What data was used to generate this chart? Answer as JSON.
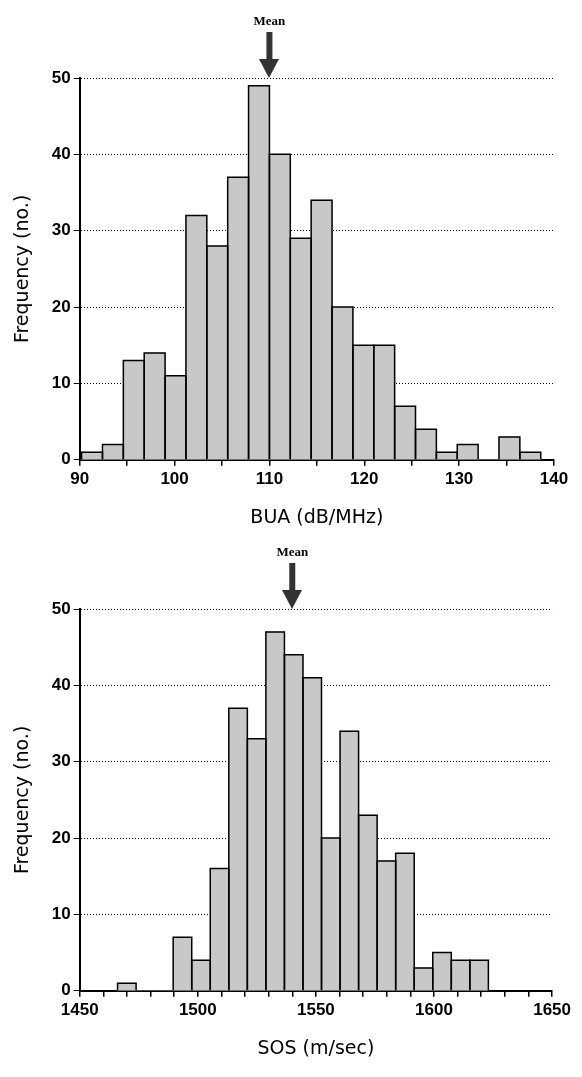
{
  "chart_data": [
    {
      "type": "histogram",
      "xlabel": "BUA (dB/MHz)",
      "ylabel": "Frequency (no.)",
      "bins": [
        90.2,
        92.4,
        94.6,
        96.8,
        99,
        101.2,
        103.4,
        105.6,
        107.8,
        110,
        112.2,
        114.4,
        116.6,
        118.8,
        121,
        123.2,
        125.4,
        127.6,
        129.8,
        132,
        134.2,
        136.4,
        138.6
      ],
      "values": [
        1,
        2,
        13,
        14,
        11,
        32,
        28,
        37,
        49,
        40,
        29,
        34,
        20,
        15,
        15,
        7,
        4,
        1,
        2,
        0,
        3,
        1
      ],
      "color": "#c8c8c8",
      "xlim": [
        90,
        140
      ],
      "xticks": [
        90,
        {
          "value": 95,
          "label": null
        },
        100,
        {
          "value": 105,
          "label": null
        },
        110,
        {
          "value": 115,
          "label": null
        },
        120,
        {
          "value": 125,
          "label": null
        },
        130,
        {
          "value": 135,
          "label": null
        },
        140
      ],
      "ylim": [
        0,
        50
      ],
      "yticks": [
        0,
        10,
        20,
        30,
        40,
        50
      ],
      "grid": "y",
      "ref_lines": [
        {
          "axis": "x",
          "value": 110,
          "label": "Mean"
        }
      ]
    },
    {
      "type": "histogram",
      "xlabel": "SOS (m/sec)",
      "ylabel": "Frequency (no.)",
      "bins": [
        1466,
        1473.9,
        1481.7,
        1489.6,
        1497.4,
        1505.3,
        1513.1,
        1521,
        1528.8,
        1536.7,
        1544.5,
        1552.4,
        1560.2,
        1568.1,
        1575.9,
        1583.8,
        1591.6,
        1599.5,
        1607.3,
        1615.2,
        1623
      ],
      "values": [
        1,
        0,
        0,
        7,
        4,
        16,
        37,
        33,
        47,
        44,
        41,
        20,
        34,
        23,
        17,
        18,
        3,
        5,
        4,
        4
      ],
      "color": "#c8c8c8",
      "xlim": [
        1450,
        1650
      ],
      "xticks": [
        1450,
        {
          "value": 1460,
          "label": null
        },
        {
          "value": 1470,
          "label": null
        },
        {
          "value": 1480,
          "label": null
        },
        {
          "value": 1490,
          "label": null
        },
        1500,
        {
          "value": 1510,
          "label": null
        },
        {
          "value": 1520,
          "label": null
        },
        {
          "value": 1530,
          "label": null
        },
        {
          "value": 1540,
          "label": null
        },
        1550,
        {
          "value": 1560,
          "label": null
        },
        {
          "value": 1570,
          "label": null
        },
        {
          "value": 1580,
          "label": null
        },
        {
          "value": 1590,
          "label": null
        },
        1600,
        {
          "value": 1610,
          "label": null
        },
        {
          "value": 1620,
          "label": null
        },
        {
          "value": 1630,
          "label": null
        },
        {
          "value": 1640,
          "label": null
        },
        1650
      ],
      "ylim": [
        0,
        50
      ],
      "yticks": [
        0,
        10,
        20,
        30,
        40,
        50
      ],
      "grid": "y",
      "ref_lines": [
        {
          "axis": "x",
          "value": 1540,
          "label": "Mean"
        }
      ]
    }
  ]
}
